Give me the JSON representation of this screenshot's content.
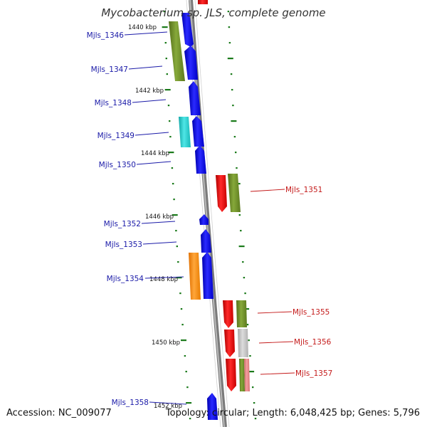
{
  "title": "Mycobacterium sp. JLS, complete genome",
  "footer": {
    "accession": "Accession: NC_009077",
    "summary": "Topology: circular; Length: 6,048,425 bp; Genes: 5,796"
  },
  "colors": {
    "backbone": "#8c8c8c",
    "tick": "#1a7a1a",
    "label_left": "#1a1aa8",
    "label_right": "#c41a1a",
    "blue": "#0000e6",
    "olive": "#6b8e23",
    "cyan": "#1ec8c8",
    "red": "#e60000",
    "orange": "#ff8c00",
    "gray": "#bfbfbf",
    "salmon": "#e88080"
  },
  "kbp_labels": [
    "1440 kbp",
    "1442 kbp",
    "1444 kbp",
    "1446 kbp",
    "1448 kbp",
    "1450 kbp",
    "1452 kbp"
  ],
  "genes_left": [
    {
      "label": "Mjls_1346"
    },
    {
      "label": "Mjls_1347"
    },
    {
      "label": "Mjls_1348"
    },
    {
      "label": "Mjls_1349"
    },
    {
      "label": "Mjls_1350"
    },
    {
      "label": "Mjls_1352"
    },
    {
      "label": "Mjls_1353"
    },
    {
      "label": "Mjls_1354"
    },
    {
      "label": "Mjls_1358"
    }
  ],
  "genes_right": [
    {
      "label": "Mjls_1351"
    },
    {
      "label": "Mjls_1355"
    },
    {
      "label": "Mjls_1356"
    },
    {
      "label": "Mjls_1357"
    }
  ]
}
